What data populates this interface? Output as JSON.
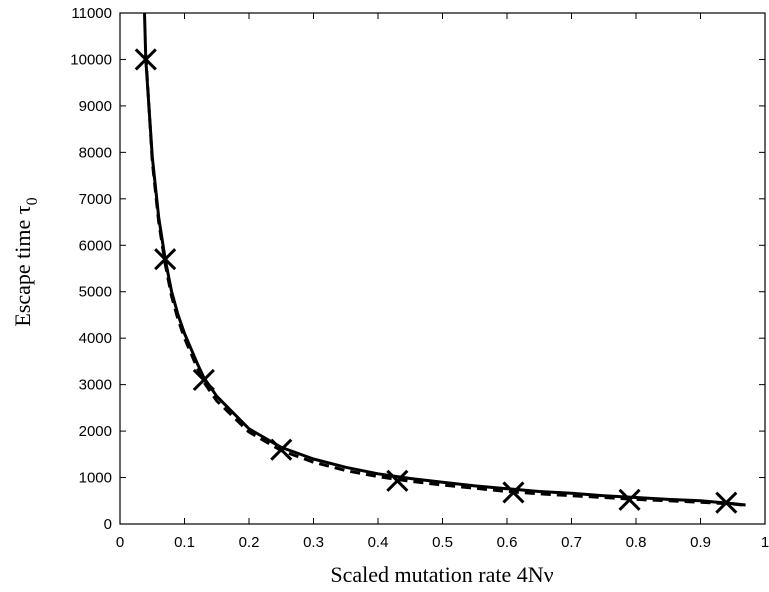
{
  "chart_data": {
    "type": "line",
    "xlabel": "Scaled mutation rate 4Nν",
    "ylabel": "Escape time τ",
    "ylabel_subscript": "0",
    "xlim": [
      0,
      1
    ],
    "ylim": [
      0,
      11000
    ],
    "x_ticks": [
      "0",
      "0.1",
      "0.2",
      "0.3",
      "0.4",
      "0.5",
      "0.6",
      "0.7",
      "0.8",
      "0.9",
      "1"
    ],
    "x_tick_values": [
      0,
      0.1,
      0.2,
      0.3,
      0.4,
      0.5,
      0.6,
      0.7,
      0.8,
      0.9,
      1
    ],
    "y_ticks": [
      "0",
      "1000",
      "2000",
      "3000",
      "4000",
      "5000",
      "6000",
      "7000",
      "8000",
      "9000",
      "10000",
      "11000"
    ],
    "y_tick_values": [
      0,
      1000,
      2000,
      3000,
      4000,
      5000,
      6000,
      7000,
      8000,
      9000,
      10000,
      11000
    ],
    "grid": false,
    "series": [
      {
        "style": "solid",
        "x": [
          0.038,
          0.04,
          0.05,
          0.06,
          0.07,
          0.08,
          0.09,
          0.1,
          0.12,
          0.13,
          0.15,
          0.2,
          0.25,
          0.3,
          0.35,
          0.4,
          0.45,
          0.5,
          0.55,
          0.6,
          0.65,
          0.7,
          0.75,
          0.8,
          0.85,
          0.9,
          0.95,
          0.97
        ],
        "y": [
          11000,
          10000,
          7900,
          6600,
          5700,
          5000,
          4500,
          4100,
          3450,
          3150,
          2750,
          2050,
          1650,
          1400,
          1220,
          1080,
          980,
          900,
          820,
          760,
          700,
          660,
          610,
          570,
          530,
          500,
          440,
          410
        ]
      },
      {
        "style": "dashed",
        "x": [
          0.04,
          0.05,
          0.06,
          0.07,
          0.08,
          0.09,
          0.1,
          0.12,
          0.13,
          0.15,
          0.2,
          0.25,
          0.3,
          0.35,
          0.4,
          0.45,
          0.5,
          0.55,
          0.6,
          0.65,
          0.7,
          0.75,
          0.8,
          0.85,
          0.9,
          0.95,
          0.97
        ],
        "y": [
          10100,
          7800,
          6500,
          5600,
          4900,
          4400,
          4000,
          3350,
          3050,
          2650,
          1980,
          1580,
          1330,
          1150,
          1020,
          920,
          840,
          770,
          700,
          650,
          610,
          570,
          530,
          500,
          470,
          430,
          400
        ]
      },
      {
        "style": "markers",
        "marker": "x",
        "x": [
          0.04,
          0.07,
          0.13,
          0.25,
          0.43,
          0.61,
          0.79,
          0.94
        ],
        "y": [
          10000,
          5700,
          3100,
          1600,
          930,
          680,
          520,
          460
        ]
      }
    ]
  }
}
